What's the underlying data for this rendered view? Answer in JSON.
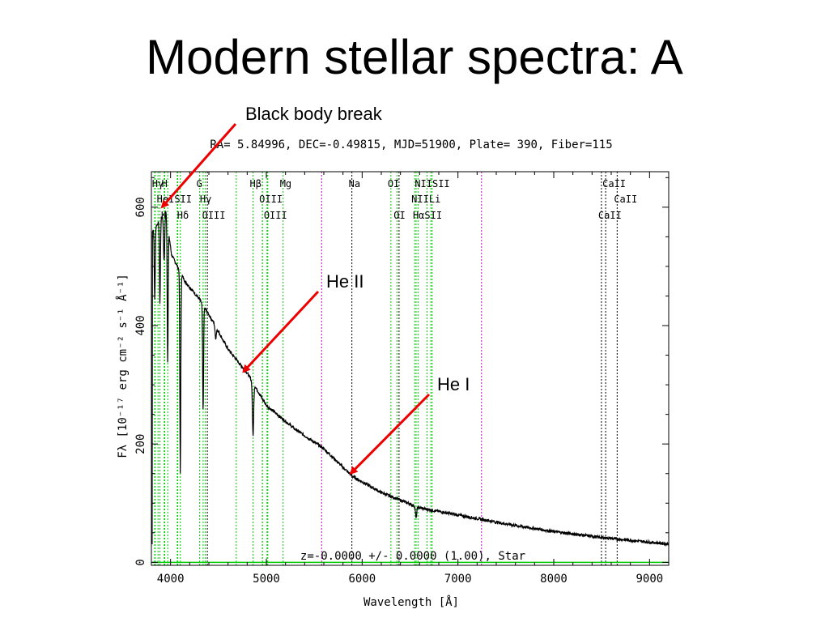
{
  "slide": {
    "title": "Modern stellar spectra: A"
  },
  "annotations": [
    {
      "label": "Black body break",
      "target": {
        "wavelength": 3910,
        "flux": 600
      }
    },
    {
      "label": "He II",
      "target": {
        "wavelength": 4760,
        "flux": 322
      }
    },
    {
      "label": "He I",
      "target": {
        "wavelength": 5880,
        "flux": 150
      }
    }
  ],
  "chart_data": {
    "type": "line",
    "header": "RA= 5.84996, DEC=-0.49815, MJD=51900, Plate= 390, Fiber=115",
    "footer": "z=-0.0000 +/- 0.0000 (1.00), Star",
    "xlabel": "Wavelength [Å]",
    "ylabel": "Fλ [10⁻¹⁷ erg cm⁻² s⁻¹ Å⁻¹]",
    "xlim": [
      3800,
      9200
    ],
    "ylim": [
      -5,
      660
    ],
    "x_ticks": [
      4000,
      5000,
      6000,
      7000,
      8000,
      9000
    ],
    "y_ticks": [
      0,
      200,
      400,
      600
    ],
    "colors": {
      "spectrum": "#000000",
      "emission_line": "#00cc00",
      "absorption_line": "#000000",
      "sky_line": "#cc00cc"
    },
    "continuum_anchors": [
      [
        3810,
        560
      ],
      [
        3880,
        575
      ],
      [
        3950,
        595
      ],
      [
        4010,
        520
      ],
      [
        4150,
        475
      ],
      [
        4300,
        445
      ],
      [
        4450,
        405
      ],
      [
        4600,
        360
      ],
      [
        4800,
        320
      ],
      [
        5000,
        265
      ],
      [
        5300,
        225
      ],
      [
        5600,
        192
      ],
      [
        5900,
        145
      ],
      [
        6200,
        118
      ],
      [
        6600,
        92
      ],
      [
        7000,
        80
      ],
      [
        7500,
        65
      ],
      [
        8000,
        52
      ],
      [
        8500,
        42
      ],
      [
        9000,
        34
      ],
      [
        9200,
        31
      ]
    ],
    "absorption_features": [
      {
        "wavelength": 3835,
        "depth": 120
      },
      {
        "wavelength": 3889,
        "depth": 140
      },
      {
        "wavelength": 3933,
        "depth": 80
      },
      {
        "wavelength": 3970,
        "depth": 230
      },
      {
        "wavelength": 4102,
        "depth": 340
      },
      {
        "wavelength": 4340,
        "depth": 180
      },
      {
        "wavelength": 4471,
        "depth": 20
      },
      {
        "wavelength": 4861,
        "depth": 90
      },
      {
        "wavelength": 6563,
        "depth": 20
      }
    ],
    "emission_lines": [
      {
        "label": "Hγ",
        "row": 0,
        "wavelength": 3840
      },
      {
        "label": "H",
        "row": 0,
        "wavelength": 3940
      },
      {
        "label": "G",
        "row": 0,
        "wavelength": 4304
      },
      {
        "label": "Hβ",
        "row": 0,
        "wavelength": 4861
      },
      {
        "label": "Mg",
        "row": 0,
        "wavelength": 5175
      },
      {
        "label": "OI",
        "row": 0,
        "wavelength": 6300
      },
      {
        "label": "NIISII",
        "row": 0,
        "wavelength": 6583
      },
      {
        "label": "HeISII",
        "row": 1,
        "wavelength": 3890
      },
      {
        "label": "Hγ",
        "row": 1,
        "wavelength": 4340
      },
      {
        "label": "OIII",
        "row": 1,
        "wavelength": 4959
      },
      {
        "label": "NIILi",
        "row": 1,
        "wavelength": 6548
      },
      {
        "label": "K",
        "row": 2,
        "wavelength": 3934
      },
      {
        "label": "Hδ",
        "row": 2,
        "wavelength": 4102
      },
      {
        "label": "OIII",
        "row": 2,
        "wavelength": 4363
      },
      {
        "label": "OIII",
        "row": 2,
        "wavelength": 5007
      },
      {
        "label": "OI",
        "row": 2,
        "wavelength": 6363
      },
      {
        "label": "HαSII",
        "row": 2,
        "wavelength": 6563
      }
    ],
    "absorption_lines": [
      {
        "label": "Na",
        "row": 0,
        "wavelength": 5893
      },
      {
        "label": "CaII",
        "row": 0,
        "wavelength": 8542
      },
      {
        "label": "CaII",
        "row": 1,
        "wavelength": 8662
      },
      {
        "label": "CaII",
        "row": 2,
        "wavelength": 8498
      }
    ],
    "extra_line_markers": {
      "emission": [
        3800,
        3835,
        3869,
        3971,
        4070,
        4076,
        4686,
        4959,
        5015,
        6678,
        6717,
        6731
      ],
      "absorption": [
        4384,
        6385
      ],
      "sky": [
        5577,
        7246
      ]
    }
  }
}
